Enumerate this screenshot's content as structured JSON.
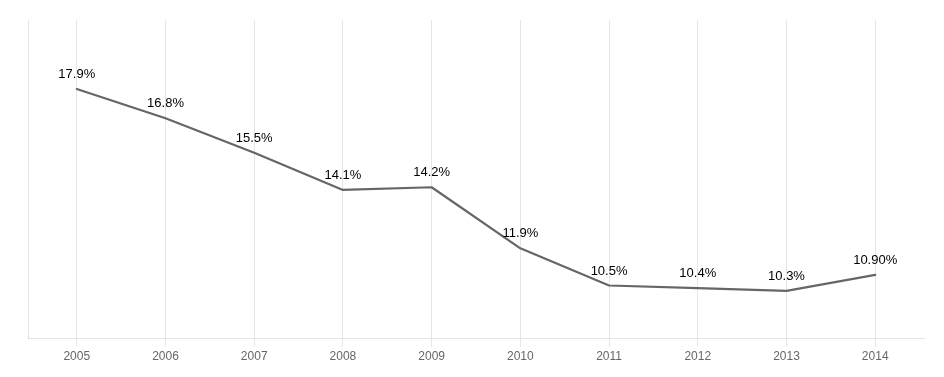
{
  "chart_data": {
    "type": "line",
    "x": [
      2005,
      2006,
      2007,
      2008,
      2009,
      2010,
      2011,
      2012,
      2013,
      2014
    ],
    "values": [
      17.9,
      16.8,
      15.5,
      14.1,
      14.2,
      11.9,
      10.5,
      10.4,
      10.3,
      10.9
    ],
    "value_labels": [
      "17.9%",
      "16.8%",
      "15.5%",
      "14.1%",
      "14.2%",
      "11.9%",
      "10.5%",
      "10.4%",
      "10.3%",
      "10.90%"
    ],
    "data_labels": true,
    "color": "#666666",
    "xlim": [
      2004.45,
      2014.55
    ],
    "xticks": [
      2005,
      2006,
      2007,
      2008,
      2009,
      2010,
      2011,
      2012,
      2013,
      2014
    ],
    "ylim": [
      8.5,
      20.5
    ],
    "grid": "x",
    "tick_labels": "x"
  }
}
